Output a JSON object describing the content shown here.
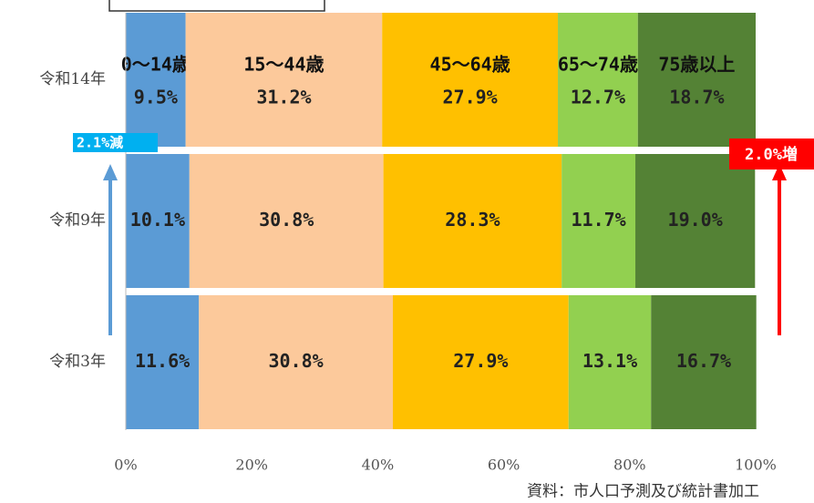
{
  "chart_data": {
    "type": "stacked-barh",
    "categories": [
      "令和14年",
      "令和9年",
      "令和3年"
    ],
    "series": [
      {
        "name": "0〜14歳",
        "color": "#5b9bd5",
        "values": [
          9.5,
          10.1,
          11.6
        ],
        "value_labels": [
          "9.5%",
          "10.1%",
          "11.6%"
        ]
      },
      {
        "name": "15〜44歳",
        "color": "#fcc99b",
        "values": [
          31.2,
          30.8,
          30.8
        ],
        "value_labels": [
          "31.2%",
          "30.8%",
          "30.8%"
        ]
      },
      {
        "name": "45〜64歳",
        "color": "#ffc000",
        "values": [
          27.9,
          28.3,
          27.9
        ],
        "value_labels": [
          "27.9%",
          "28.3%",
          "27.9%"
        ]
      },
      {
        "name": "65〜74歳",
        "color": "#92d050",
        "values": [
          12.7,
          11.7,
          13.1
        ],
        "value_labels": [
          "12.7%",
          "11.7%",
          "13.1%"
        ]
      },
      {
        "name": "75歳以上",
        "color": "#548235",
        "values": [
          18.7,
          19.0,
          16.7
        ],
        "value_labels": [
          "18.7%",
          "19.0%",
          "16.7%"
        ]
      }
    ],
    "xlim": [
      0,
      100
    ],
    "xticks": [
      {
        "value": 0,
        "label": "0%"
      },
      {
        "value": 20,
        "label": "20%"
      },
      {
        "value": 40,
        "label": "40%"
      },
      {
        "value": 60,
        "label": "60%"
      },
      {
        "value": 80,
        "label": "80%"
      },
      {
        "value": 100,
        "label": "100%"
      }
    ],
    "grid": false,
    "annotations": [
      "2.1%減",
      "2.0%増",
      "資料：市人口予測及び統計書加工"
    ]
  }
}
